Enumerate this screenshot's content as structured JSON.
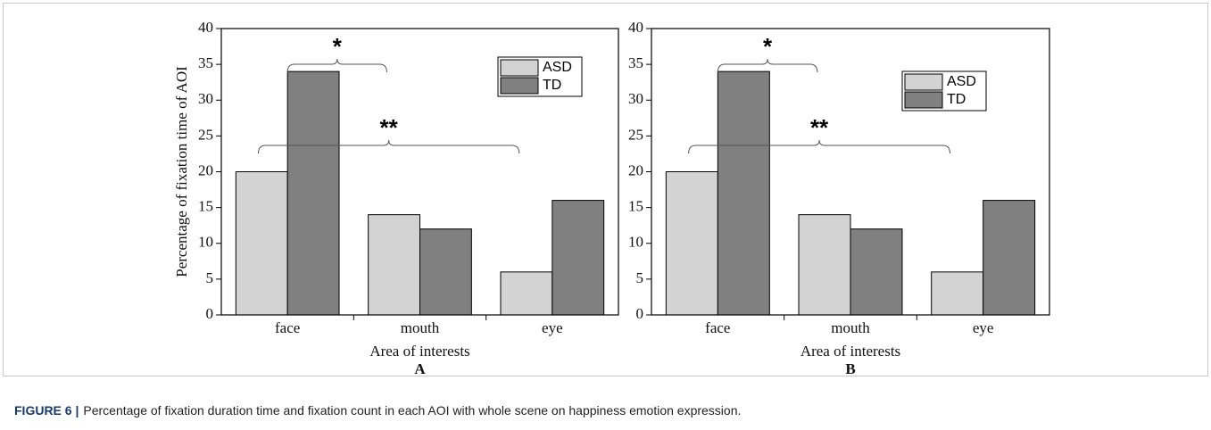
{
  "chart_data": [
    {
      "type": "bar",
      "y_label": "Percentage of fixation time of AOI",
      "x_label": "Area of interests",
      "panel": "A",
      "categories": [
        "face",
        "mouth",
        "eye"
      ],
      "series": [
        {
          "name": "ASD",
          "color": "#d3d3d3",
          "values": [
            20,
            14,
            6
          ]
        },
        {
          "name": "TD",
          "color": "#808080",
          "values": [
            34,
            12,
            16
          ]
        }
      ],
      "ylim": [
        0,
        40
      ],
      "yticks": [
        0,
        5,
        10,
        15,
        20,
        25,
        30,
        35,
        40
      ],
      "legend": "upper right",
      "annotations": [
        "*",
        "**"
      ]
    },
    {
      "type": "bar",
      "x_label": "Area of interests",
      "panel": "B",
      "categories": [
        "face",
        "mouth",
        "eye"
      ],
      "series": [
        {
          "name": "ASD",
          "color": "#d3d3d3",
          "values": [
            20,
            14,
            6
          ]
        },
        {
          "name": "TD",
          "color": "#808080",
          "values": [
            34,
            12,
            16
          ]
        }
      ],
      "ylim": [
        0,
        40
      ],
      "yticks": [
        0,
        5,
        10,
        15,
        20,
        25,
        30,
        35,
        40
      ],
      "legend": "upper right",
      "annotations": [
        "*",
        "**"
      ]
    }
  ],
  "caption": {
    "label": "FIGURE 6 |",
    "text": "Percentage of fixation duration time and fixation count in each AOI with whole scene on happiness emotion expression."
  }
}
